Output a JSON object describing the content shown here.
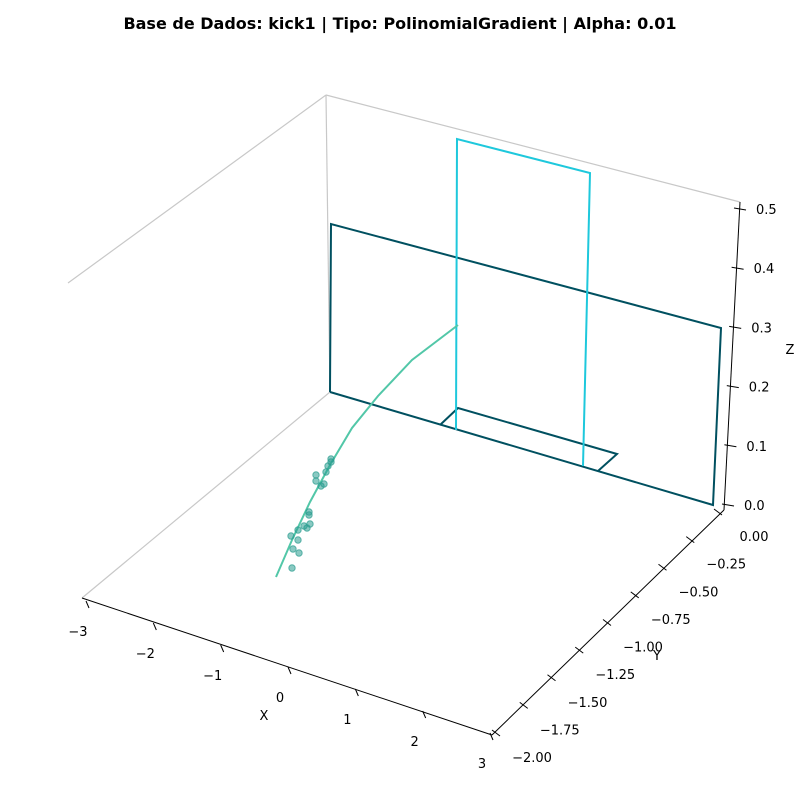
{
  "chart_data": {
    "type": "scatter3d",
    "title": "Base de Dados: kick1 | Tipo: PolinomialGradient | Alpha: 0.01",
    "xlabel": "X",
    "ylabel": "Y",
    "zlabel": "Z",
    "xlim": [
      -3,
      3
    ],
    "ylim": [
      -2.0,
      0.0
    ],
    "zlim": [
      0.0,
      0.5
    ],
    "x_ticks": [
      "−3",
      "−2",
      "−1",
      "0",
      "1",
      "2",
      "3"
    ],
    "y_ticks": [
      "0.00",
      "−0.25",
      "−0.50",
      "−0.75",
      "−1.00",
      "−1.25",
      "−1.50",
      "−1.75",
      "−2.00"
    ],
    "z_ticks": [
      "0.0",
      "0.1",
      "0.2",
      "0.3",
      "0.4",
      "0.5"
    ],
    "grid": false,
    "colors": {
      "scatter": "#2a9d8f",
      "curve": "#52c7a8",
      "plane_dark": "#005060",
      "plane_light": "#1ec8dc",
      "pane_edge": "#c8c8c8",
      "axis": "#000000"
    },
    "series": [
      {
        "kind": "points",
        "points": [
          [
            -0.45,
            -1.25,
            0.0
          ],
          [
            -0.4,
            -1.3,
            0.0
          ],
          [
            -0.48,
            -1.15,
            0.0
          ],
          [
            -0.42,
            -1.1,
            0.0
          ],
          [
            -0.38,
            -1.05,
            0.0
          ],
          [
            -0.35,
            -1.0,
            0.0
          ],
          [
            -0.3,
            -0.98,
            0.0
          ],
          [
            -0.28,
            -0.95,
            0.0
          ],
          [
            -0.25,
            -0.85,
            0.0
          ],
          [
            -0.23,
            -0.82,
            0.0
          ],
          [
            -0.15,
            -0.7,
            0.0
          ],
          [
            -0.1,
            -0.65,
            0.0
          ],
          [
            -0.12,
            -0.62,
            0.0
          ],
          [
            -0.06,
            -0.58,
            0.0
          ],
          [
            -0.05,
            -0.55,
            0.0
          ],
          [
            -0.03,
            -0.5,
            0.0
          ],
          [
            -0.02,
            -0.47,
            0.0
          ],
          [
            0.0,
            -0.45,
            0.0
          ],
          [
            -0.52,
            -1.4,
            0.0
          ]
        ]
      },
      {
        "kind": "curve",
        "points": [
          [
            -0.55,
            -1.55,
            0.0
          ],
          [
            -0.45,
            -1.3,
            0.02
          ],
          [
            -0.35,
            -1.05,
            0.05
          ],
          [
            -0.25,
            -0.82,
            0.09
          ],
          [
            -0.15,
            -0.62,
            0.14
          ],
          [
            -0.05,
            -0.42,
            0.19
          ],
          [
            0.05,
            -0.22,
            0.24
          ],
          [
            0.15,
            -0.05,
            0.28
          ]
        ]
      },
      {
        "kind": "plane",
        "color_key": "plane_dark",
        "x_range": [
          -3,
          3
        ],
        "y": 0.0,
        "z_range": [
          0.0,
          0.3
        ]
      },
      {
        "kind": "plane",
        "color_key": "plane_light",
        "x_range": [
          -0.05,
          2.0
        ],
        "y": 0.0,
        "z_range": [
          0.0,
          0.45
        ]
      }
    ]
  }
}
